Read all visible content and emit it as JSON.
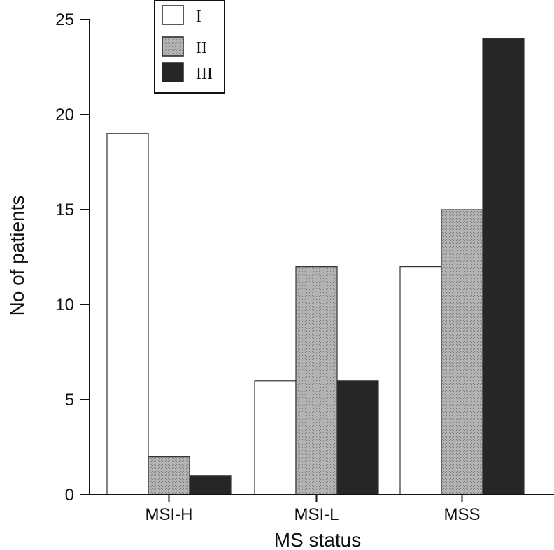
{
  "chart_data": {
    "type": "bar",
    "title": "",
    "xlabel": "MS status",
    "ylabel": "No of patients",
    "categories": [
      "MSI-H",
      "MSI-L",
      "MSS"
    ],
    "ylim": [
      0,
      25
    ],
    "yticks": [
      0,
      5,
      10,
      15,
      20,
      25
    ],
    "grid": false,
    "legend_position": "top-left",
    "series": [
      {
        "name": "I",
        "values": [
          19,
          6,
          12
        ],
        "color": "#ffffff"
      },
      {
        "name": "II",
        "values": [
          2,
          12,
          15
        ],
        "color": "#a6a6a6"
      },
      {
        "name": "III",
        "values": [
          1,
          6,
          24
        ],
        "color": "#222222"
      }
    ]
  }
}
